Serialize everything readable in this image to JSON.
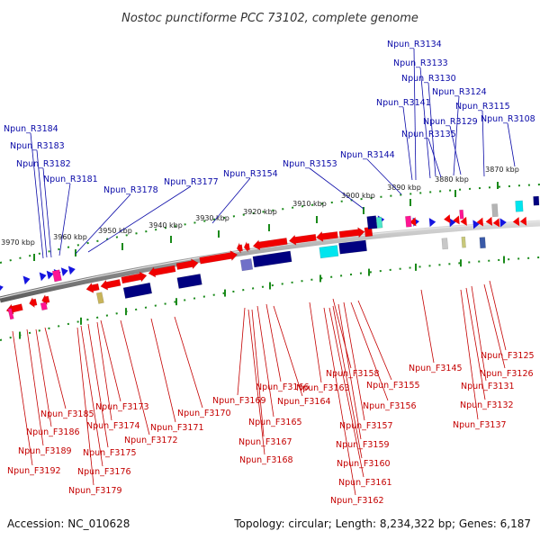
{
  "title": "Nostoc punctiforme PCC 73102, complete genome",
  "footer": {
    "accession": "Accession: NC_010628",
    "summary": "Topology: circular; Length: 8,234,322 bp; Genes: 6,187"
  },
  "colors": {
    "reverse_label": "#0a0aa8",
    "forward_label": "#c40000",
    "reverse_gene": "#1515e0",
    "forward_gene": "#f00000",
    "backbone": "#7a7a7a",
    "tick": "#1a8a1a",
    "rrna": "#ff1493",
    "trna": "#00e5ee",
    "misc": "#000080"
  },
  "tick_labels": [
    "3970 kbp",
    "3960 kbp",
    "3950 kbp",
    "3940 kbp",
    "3930 kbp",
    "3920 kbp",
    "3910 kbp",
    "3900 kbp",
    "3890 kbp",
    "3880 kbp",
    "3870 kbp"
  ],
  "reverse_labels": [
    "Npun_R3134",
    "Npun_R3133",
    "Npun_R3130",
    "Npun_R3124",
    "Npun_R3141",
    "Npun_R3115",
    "Npun_R3129",
    "Npun_R3108",
    "Npun_R3135",
    "Npun_R3184",
    "Npun_R3183",
    "Npun_R3182",
    "Npun_R3181",
    "Npun_R3178",
    "Npun_R3177",
    "Npun_R3154",
    "Npun_R3153",
    "Npun_R3144"
  ],
  "forward_labels": [
    "Npun_F3125",
    "Npun_F3126",
    "Npun_F3131",
    "Npun_F3132",
    "Npun_F3137",
    "Npun_F3145",
    "Npun_F3158",
    "Npun_F3155",
    "Npun_F3156",
    "Npun_F3163",
    "Npun_F3166",
    "Npun_F3169",
    "Npun_F3164",
    "Npun_F3165",
    "Npun_F3157",
    "Npun_F3159",
    "Npun_F3167",
    "Npun_F3160",
    "Npun_F3168",
    "Npun_F3161",
    "Npun_F3162",
    "Npun_F3173",
    "Npun_F3170",
    "Npun_F3171",
    "Npun_F3172",
    "Npun_F3174",
    "Npun_F3175",
    "Npun_F3176",
    "Npun_F3179",
    "Npun_F3185",
    "Npun_F3186",
    "Npun_F3189",
    "Npun_F3192"
  ]
}
